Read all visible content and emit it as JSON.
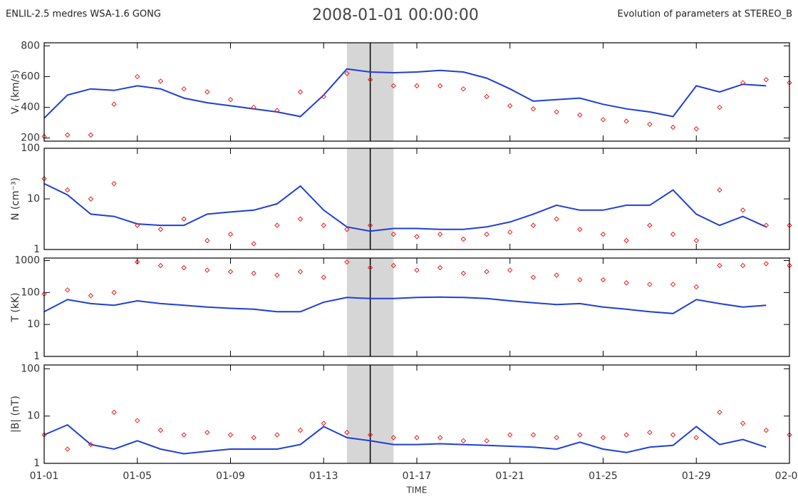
{
  "header": {
    "left": "ENLIL-2.5 medres WSA-1.6 GONG",
    "title": "2008-01-01 00:00:00",
    "right": "Evolution of parameters at STEREO_B"
  },
  "highlight": {
    "band": [
      "01-14",
      "01-16"
    ],
    "marker": "01-15"
  },
  "chart_data": [
    {
      "type": "line",
      "ylabel": "Vᵣ (km/s)",
      "log": false,
      "ylim": [
        180,
        820
      ],
      "yticks": [
        200,
        400,
        600,
        800
      ],
      "x": [
        "01-01",
        "01-02",
        "01-03",
        "01-04",
        "01-05",
        "01-06",
        "01-07",
        "01-08",
        "01-09",
        "01-10",
        "01-11",
        "01-12",
        "01-13",
        "01-14",
        "01-15",
        "01-16",
        "01-17",
        "01-18",
        "01-19",
        "01-20",
        "01-21",
        "01-22",
        "01-23",
        "01-24",
        "01-25",
        "01-26",
        "01-27",
        "01-28",
        "01-29",
        "01-30",
        "01-31",
        "02-01",
        "02-02"
      ],
      "series": [
        {
          "type": "line",
          "color": "#1f3fd6",
          "values": [
            330,
            480,
            520,
            510,
            540,
            520,
            460,
            430,
            410,
            390,
            370,
            340,
            480,
            650,
            630,
            625,
            630,
            640,
            630,
            590,
            520,
            440,
            450,
            460,
            420,
            390,
            370,
            340,
            540,
            500,
            550,
            540,
            null
          ]
        },
        {
          "type": "scatter",
          "color": "#e82020",
          "values": [
            210,
            220,
            220,
            420,
            600,
            570,
            520,
            500,
            450,
            400,
            380,
            500,
            470,
            620,
            580,
            540,
            540,
            540,
            520,
            470,
            410,
            390,
            370,
            350,
            320,
            310,
            290,
            270,
            260,
            400,
            560,
            580,
            560
          ]
        }
      ]
    },
    {
      "type": "line",
      "ylabel": "N (cm⁻³)",
      "log": true,
      "ylim": [
        1,
        100
      ],
      "yticks": [
        1,
        10,
        100
      ],
      "x": [
        "01-01",
        "01-02",
        "01-03",
        "01-04",
        "01-05",
        "01-06",
        "01-07",
        "01-08",
        "01-09",
        "01-10",
        "01-11",
        "01-12",
        "01-13",
        "01-14",
        "01-15",
        "01-16",
        "01-17",
        "01-18",
        "01-19",
        "01-20",
        "01-21",
        "01-22",
        "01-23",
        "01-24",
        "01-25",
        "01-26",
        "01-27",
        "01-28",
        "01-29",
        "01-30",
        "01-31",
        "02-01",
        "02-02"
      ],
      "series": [
        {
          "type": "line",
          "color": "#1f3fd6",
          "values": [
            20,
            12,
            5,
            4.5,
            3.2,
            3,
            3,
            5,
            5.5,
            6,
            8,
            18,
            6,
            2.8,
            2.3,
            2.6,
            2.6,
            2.5,
            2.5,
            2.8,
            3.5,
            5,
            7.5,
            6,
            6,
            7.5,
            7.5,
            15,
            5,
            3,
            4.5,
            2.8,
            null
          ]
        },
        {
          "type": "scatter",
          "color": "#e82020",
          "values": [
            25,
            15,
            10,
            20,
            3,
            2.5,
            4,
            1.5,
            2,
            1.3,
            3,
            4,
            3,
            2.5,
            3,
            2,
            1.8,
            2,
            1.6,
            2,
            2.2,
            3,
            4,
            2.5,
            2,
            1.5,
            3,
            2,
            1.5,
            15,
            6,
            3,
            3
          ]
        }
      ]
    },
    {
      "type": "line",
      "ylabel": "T (kK)",
      "log": true,
      "ylim": [
        1,
        1200
      ],
      "yticks": [
        1,
        10,
        100,
        1000
      ],
      "x": [
        "01-01",
        "01-02",
        "01-03",
        "01-04",
        "01-05",
        "01-06",
        "01-07",
        "01-08",
        "01-09",
        "01-10",
        "01-11",
        "01-12",
        "01-13",
        "01-14",
        "01-15",
        "01-16",
        "01-17",
        "01-18",
        "01-19",
        "01-20",
        "01-21",
        "01-22",
        "01-23",
        "01-24",
        "01-25",
        "01-26",
        "01-27",
        "01-28",
        "01-29",
        "01-30",
        "01-31",
        "02-01",
        "02-02"
      ],
      "series": [
        {
          "type": "line",
          "color": "#1f3fd6",
          "values": [
            25,
            60,
            45,
            40,
            55,
            45,
            40,
            35,
            32,
            30,
            25,
            25,
            50,
            70,
            65,
            65,
            70,
            72,
            70,
            65,
            55,
            48,
            42,
            45,
            35,
            30,
            25,
            22,
            60,
            45,
            35,
            40,
            null
          ]
        },
        {
          "type": "scatter",
          "color": "#e82020",
          "values": [
            90,
            120,
            80,
            100,
            900,
            700,
            600,
            500,
            450,
            400,
            350,
            450,
            300,
            900,
            600,
            700,
            500,
            600,
            400,
            450,
            500,
            300,
            350,
            250,
            250,
            200,
            180,
            180,
            150,
            700,
            700,
            800,
            700
          ]
        }
      ]
    },
    {
      "type": "line",
      "ylabel": "|B| (nT)",
      "log": true,
      "ylim": [
        1,
        120
      ],
      "yticks": [
        1,
        10,
        100
      ],
      "x": [
        "01-01",
        "01-02",
        "01-03",
        "01-04",
        "01-05",
        "01-06",
        "01-07",
        "01-08",
        "01-09",
        "01-10",
        "01-11",
        "01-12",
        "01-13",
        "01-14",
        "01-15",
        "01-16",
        "01-17",
        "01-18",
        "01-19",
        "01-20",
        "01-21",
        "01-22",
        "01-23",
        "01-24",
        "01-25",
        "01-26",
        "01-27",
        "01-28",
        "01-29",
        "01-30",
        "01-31",
        "02-01",
        "02-02"
      ],
      "xticks": [
        "01-01",
        "01-05",
        "01-09",
        "01-13",
        "01-17",
        "01-21",
        "01-25",
        "01-29",
        "02-02"
      ],
      "xlabel": "TIME",
      "series": [
        {
          "type": "line",
          "color": "#1f3fd6",
          "values": [
            4,
            6.5,
            2.5,
            2,
            3,
            2,
            1.6,
            1.8,
            2,
            2,
            2,
            2.5,
            6,
            3.5,
            3,
            2.5,
            2.5,
            2.6,
            2.5,
            2.4,
            2.3,
            2.2,
            2,
            2.8,
            2,
            1.7,
            2.2,
            2.4,
            6,
            2.5,
            3.2,
            2.2,
            null
          ]
        },
        {
          "type": "scatter",
          "color": "#e82020",
          "values": [
            4,
            2,
            2.5,
            12,
            8,
            5,
            4,
            4.5,
            4,
            3.5,
            4,
            5,
            7,
            4.5,
            4,
            3.5,
            3.5,
            3.5,
            3,
            3,
            4,
            4,
            3.5,
            4,
            3.5,
            4,
            4.5,
            4,
            3.5,
            12,
            7,
            5,
            4
          ]
        }
      ]
    }
  ]
}
